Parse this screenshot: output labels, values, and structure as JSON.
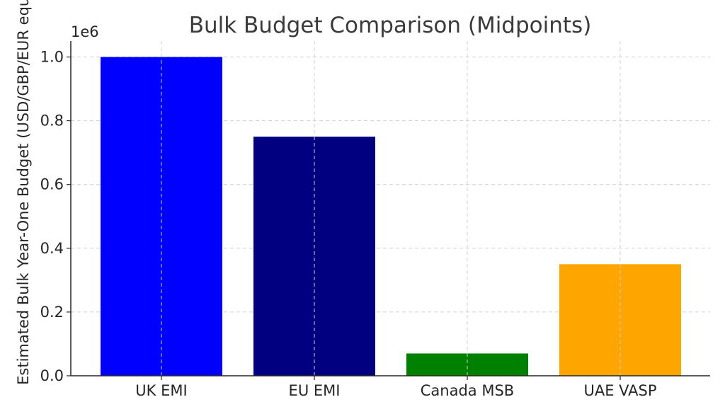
{
  "chart_data": {
    "type": "bar",
    "title": "Bulk Budget Comparison (Midpoints)",
    "ylabel": "Estimated Bulk Year-One Budget (USD/GBP/EUR equivalent)",
    "xlabel": "",
    "y_offset_label": "1e6",
    "categories": [
      "UK EMI",
      "EU EMI",
      "Canada MSB",
      "UAE VASP"
    ],
    "values": [
      1000000,
      750000,
      70000,
      350000
    ],
    "colors": [
      "#0000ff",
      "#000080",
      "#008000",
      "#ffa500"
    ],
    "ylim": [
      0,
      1050000
    ],
    "yticks": [
      0,
      200000,
      400000,
      600000,
      800000,
      1000000
    ],
    "ytick_labels": [
      "0.0",
      "0.2",
      "0.4",
      "0.6",
      "0.8",
      "1.0"
    ],
    "grid": true
  }
}
